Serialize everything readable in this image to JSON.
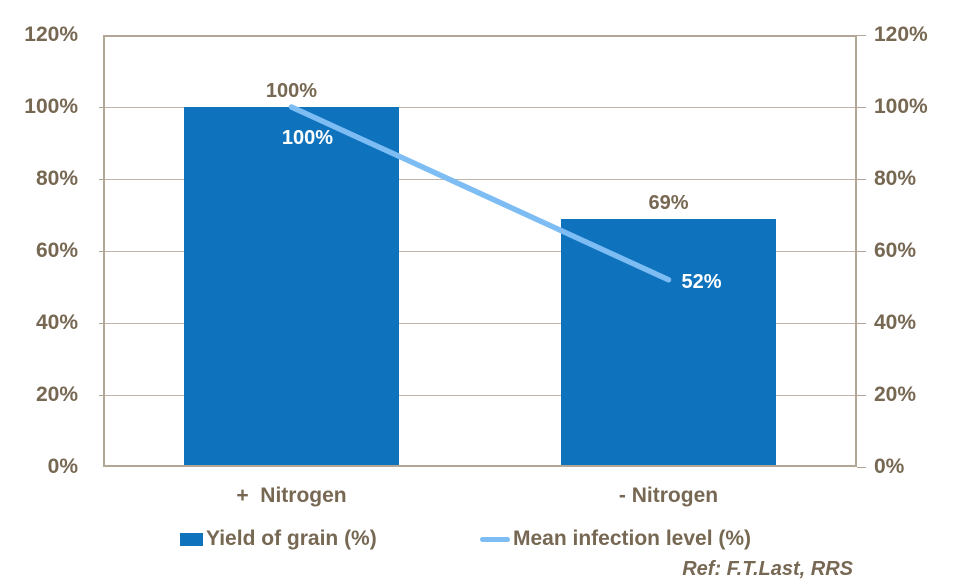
{
  "chart_data": {
    "type": "combo_bar_line",
    "title": "",
    "categories": [
      "+  Nitrogen",
      "- Nitrogen"
    ],
    "series": [
      {
        "name": "Yield of grain (%)",
        "type": "bar",
        "values": [
          100,
          69
        ],
        "data_labels": [
          "100%",
          "69%"
        ],
        "color": "#0e72bd"
      },
      {
        "name": "Mean infection level (%)",
        "type": "line",
        "values": [
          100,
          52
        ],
        "data_labels": [
          "100%",
          "52%"
        ],
        "color": "#7dbdf4"
      }
    ],
    "y_axis": {
      "min": 0,
      "max": 120,
      "step": 20,
      "ticks": [
        "120%",
        "100%",
        "80%",
        "60%",
        "40%",
        "20%",
        "0%"
      ],
      "sides": [
        "left",
        "right"
      ]
    },
    "grid": true,
    "legend_position": "bottom",
    "footnote": "Ref: F.T.Last, RRS"
  },
  "colors": {
    "text": "#776853",
    "axis_line": "#b2a697",
    "grid_line": "#bfb5a6",
    "bar_fill": "#0e72bd",
    "line_stroke": "#7dbdf4",
    "line_label": "#ffffff",
    "background": "#ffffff"
  }
}
